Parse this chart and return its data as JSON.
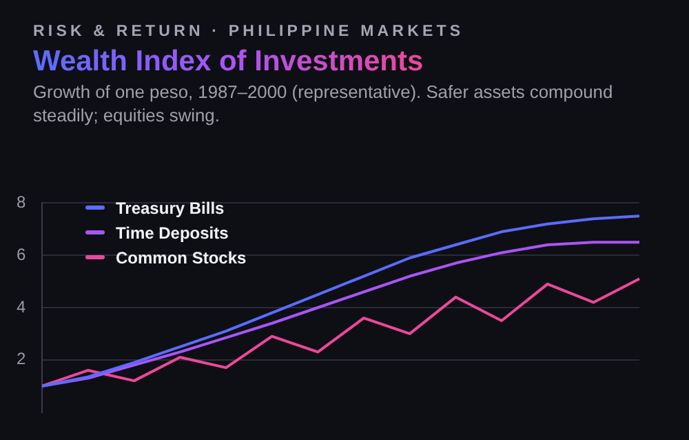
{
  "chart_data": {
    "type": "line",
    "title": "Wealth Index of Investments",
    "subtitle": "Growth of one peso, 1987–2000 (representative). Safer assets compound steadily; equities swing.",
    "annotations": [
      "RISK & RETURN · PHILIPPINE MARKETS"
    ],
    "categories": [
      null,
      null,
      null,
      null,
      null,
      null,
      null,
      null,
      null,
      null,
      null,
      null,
      null,
      null
    ],
    "series": [
      {
        "name": "Treasury Bills",
        "color": "#5b6cff",
        "values": [
          1.0,
          1.35,
          1.9,
          2.5,
          3.1,
          3.8,
          4.5,
          5.2,
          5.9,
          6.4,
          6.9,
          7.2,
          7.4,
          7.5
        ]
      },
      {
        "name": "Time Deposits",
        "color": "#a855f7",
        "values": [
          1.0,
          1.3,
          1.8,
          2.3,
          2.85,
          3.4,
          4.0,
          4.6,
          5.2,
          5.7,
          6.1,
          6.4,
          6.5,
          6.5
        ]
      },
      {
        "name": "Common Stocks",
        "color": "#ec4899",
        "values": [
          1.0,
          1.6,
          1.2,
          2.1,
          1.7,
          2.9,
          2.3,
          3.6,
          3.0,
          4.4,
          3.5,
          4.9,
          4.2,
          5.1
        ]
      }
    ],
    "ylim": [
      0,
      8
    ],
    "yticks": [
      2,
      4,
      6,
      8
    ],
    "grid": "y",
    "legend": "top left",
    "marker": "none",
    "line_style": "solid",
    "tick_labels": "y"
  }
}
